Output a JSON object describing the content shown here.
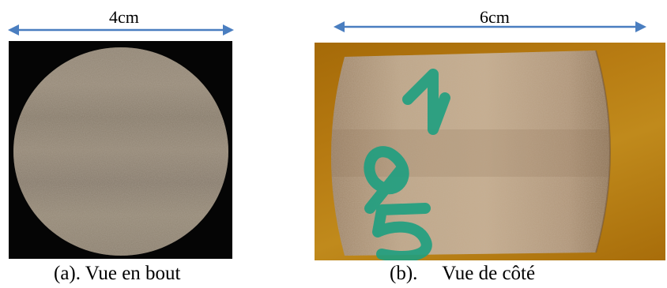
{
  "panel_a": {
    "dimension_label": "4cm",
    "caption": "(a). Vue en bout"
  },
  "panel_b": {
    "dimension_label": "6cm",
    "caption": "(b).     Vue de côté",
    "sample_marking": "597"
  },
  "colors": {
    "arrow": "#4a7ec0",
    "core": "#8e8170",
    "background_b": "#b47a12",
    "marker_ink": "#1e9f80"
  }
}
